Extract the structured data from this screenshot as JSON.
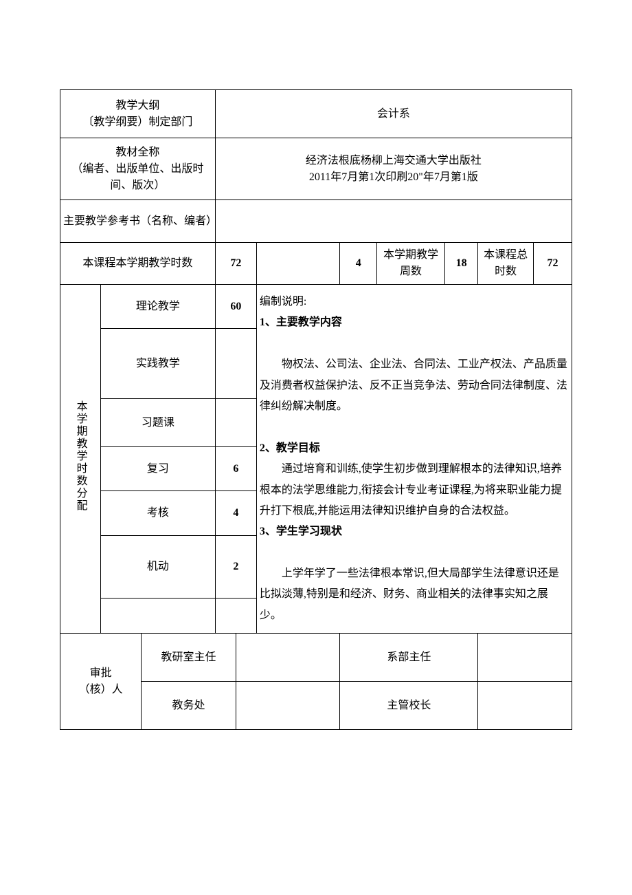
{
  "border_color": "#000000",
  "background_color": "#ffffff",
  "font_family": "SimSun",
  "base_fontsize": 16,
  "row1": {
    "label": "教学大纲\n〔教学纲要）制定部门",
    "value": "会计系"
  },
  "row2": {
    "label": "教材全称\n（编者、出版单位、出版时间、版次）",
    "value": "经济法根底杨柳上海交通大学出版社\n2011年7月第1次印刷20\"年7月第1版"
  },
  "row3": {
    "label": "主要教学参考书（名称、编者）",
    "value": ""
  },
  "hours_row": {
    "label": "本课程本学期教学时数",
    "total_sem": "72",
    "blank": "",
    "weekly": "4",
    "weeks_label": "本学期教学周数",
    "weeks": "18",
    "course_total_label": "本课程总时数",
    "course_total": "72"
  },
  "allocation_label": "本学期教学时数分配",
  "allocation": [
    {
      "name": "理论教学",
      "value": "60"
    },
    {
      "name": "实践教学",
      "value": ""
    },
    {
      "name": "习题课",
      "value": ""
    },
    {
      "name": "复习",
      "value": "6"
    },
    {
      "name": "考核",
      "value": "4"
    },
    {
      "name": "机动",
      "value": "2"
    },
    {
      "name": "",
      "value": ""
    }
  ],
  "notes": {
    "heading": "编制说明:",
    "s1_title": "1、主要教学内容",
    "s1_body": "物权法、公司法、企业法、合同法、工业产权法、产品质量及消费者权益保护法、反不正当竞争法、劳动合同法律制度、法律纠纷解决制度。",
    "s2_title": "2、教学目标",
    "s2_body": "通过培育和训练,使学生初步做到理解根本的法律知识,培养根本的法学思维能力,衔接会计专业考证课程,为将来职业能力提升打下根底,并能运用法律知识维护自身的合法权益。",
    "s3_title": "3、学生学习现状",
    "s3_body": "上学年学了一些法律根本常识,但大局部学生法律意识还是比拟淡薄,特别是和经济、财务、商业相关的法律事实知之展少。"
  },
  "approval": {
    "label": "审批\n（核）人",
    "r1c1": "教研室主任",
    "r1c2": "系部主任",
    "r2c1": "教务处",
    "r2c2": "主管校长"
  }
}
